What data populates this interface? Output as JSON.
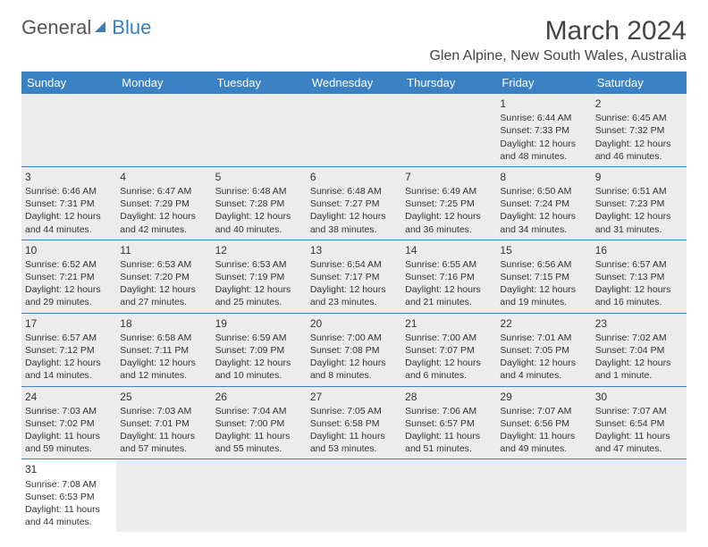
{
  "brand": {
    "part1": "General",
    "part2": "Blue"
  },
  "title": "March 2024",
  "location": "Glen Alpine, New South Wales, Australia",
  "day_headers": [
    "Sunday",
    "Monday",
    "Tuesday",
    "Wednesday",
    "Thursday",
    "Friday",
    "Saturday"
  ],
  "colors": {
    "header_bg": "#3b82c4",
    "header_text": "#ffffff",
    "shaded_row": "#ececec",
    "rule": "#3b82c4",
    "text": "#333333",
    "brand_gray": "#555555",
    "brand_blue": "#3b7fb8"
  },
  "weeks": [
    {
      "shaded": true,
      "days": [
        null,
        null,
        null,
        null,
        null,
        {
          "n": "1",
          "sunrise": "Sunrise: 6:44 AM",
          "sunset": "Sunset: 7:33 PM",
          "daylight": "Daylight: 12 hours and 48 minutes."
        },
        {
          "n": "2",
          "sunrise": "Sunrise: 6:45 AM",
          "sunset": "Sunset: 7:32 PM",
          "daylight": "Daylight: 12 hours and 46 minutes."
        }
      ]
    },
    {
      "shaded": true,
      "days": [
        {
          "n": "3",
          "sunrise": "Sunrise: 6:46 AM",
          "sunset": "Sunset: 7:31 PM",
          "daylight": "Daylight: 12 hours and 44 minutes."
        },
        {
          "n": "4",
          "sunrise": "Sunrise: 6:47 AM",
          "sunset": "Sunset: 7:29 PM",
          "daylight": "Daylight: 12 hours and 42 minutes."
        },
        {
          "n": "5",
          "sunrise": "Sunrise: 6:48 AM",
          "sunset": "Sunset: 7:28 PM",
          "daylight": "Daylight: 12 hours and 40 minutes."
        },
        {
          "n": "6",
          "sunrise": "Sunrise: 6:48 AM",
          "sunset": "Sunset: 7:27 PM",
          "daylight": "Daylight: 12 hours and 38 minutes."
        },
        {
          "n": "7",
          "sunrise": "Sunrise: 6:49 AM",
          "sunset": "Sunset: 7:25 PM",
          "daylight": "Daylight: 12 hours and 36 minutes."
        },
        {
          "n": "8",
          "sunrise": "Sunrise: 6:50 AM",
          "sunset": "Sunset: 7:24 PM",
          "daylight": "Daylight: 12 hours and 34 minutes."
        },
        {
          "n": "9",
          "sunrise": "Sunrise: 6:51 AM",
          "sunset": "Sunset: 7:23 PM",
          "daylight": "Daylight: 12 hours and 31 minutes."
        }
      ]
    },
    {
      "shaded": true,
      "days": [
        {
          "n": "10",
          "sunrise": "Sunrise: 6:52 AM",
          "sunset": "Sunset: 7:21 PM",
          "daylight": "Daylight: 12 hours and 29 minutes."
        },
        {
          "n": "11",
          "sunrise": "Sunrise: 6:53 AM",
          "sunset": "Sunset: 7:20 PM",
          "daylight": "Daylight: 12 hours and 27 minutes."
        },
        {
          "n": "12",
          "sunrise": "Sunrise: 6:53 AM",
          "sunset": "Sunset: 7:19 PM",
          "daylight": "Daylight: 12 hours and 25 minutes."
        },
        {
          "n": "13",
          "sunrise": "Sunrise: 6:54 AM",
          "sunset": "Sunset: 7:17 PM",
          "daylight": "Daylight: 12 hours and 23 minutes."
        },
        {
          "n": "14",
          "sunrise": "Sunrise: 6:55 AM",
          "sunset": "Sunset: 7:16 PM",
          "daylight": "Daylight: 12 hours and 21 minutes."
        },
        {
          "n": "15",
          "sunrise": "Sunrise: 6:56 AM",
          "sunset": "Sunset: 7:15 PM",
          "daylight": "Daylight: 12 hours and 19 minutes."
        },
        {
          "n": "16",
          "sunrise": "Sunrise: 6:57 AM",
          "sunset": "Sunset: 7:13 PM",
          "daylight": "Daylight: 12 hours and 16 minutes."
        }
      ]
    },
    {
      "shaded": true,
      "days": [
        {
          "n": "17",
          "sunrise": "Sunrise: 6:57 AM",
          "sunset": "Sunset: 7:12 PM",
          "daylight": "Daylight: 12 hours and 14 minutes."
        },
        {
          "n": "18",
          "sunrise": "Sunrise: 6:58 AM",
          "sunset": "Sunset: 7:11 PM",
          "daylight": "Daylight: 12 hours and 12 minutes."
        },
        {
          "n": "19",
          "sunrise": "Sunrise: 6:59 AM",
          "sunset": "Sunset: 7:09 PM",
          "daylight": "Daylight: 12 hours and 10 minutes."
        },
        {
          "n": "20",
          "sunrise": "Sunrise: 7:00 AM",
          "sunset": "Sunset: 7:08 PM",
          "daylight": "Daylight: 12 hours and 8 minutes."
        },
        {
          "n": "21",
          "sunrise": "Sunrise: 7:00 AM",
          "sunset": "Sunset: 7:07 PM",
          "daylight": "Daylight: 12 hours and 6 minutes."
        },
        {
          "n": "22",
          "sunrise": "Sunrise: 7:01 AM",
          "sunset": "Sunset: 7:05 PM",
          "daylight": "Daylight: 12 hours and 4 minutes."
        },
        {
          "n": "23",
          "sunrise": "Sunrise: 7:02 AM",
          "sunset": "Sunset: 7:04 PM",
          "daylight": "Daylight: 12 hours and 1 minute."
        }
      ]
    },
    {
      "shaded": true,
      "days": [
        {
          "n": "24",
          "sunrise": "Sunrise: 7:03 AM",
          "sunset": "Sunset: 7:02 PM",
          "daylight": "Daylight: 11 hours and 59 minutes."
        },
        {
          "n": "25",
          "sunrise": "Sunrise: 7:03 AM",
          "sunset": "Sunset: 7:01 PM",
          "daylight": "Daylight: 11 hours and 57 minutes."
        },
        {
          "n": "26",
          "sunrise": "Sunrise: 7:04 AM",
          "sunset": "Sunset: 7:00 PM",
          "daylight": "Daylight: 11 hours and 55 minutes."
        },
        {
          "n": "27",
          "sunrise": "Sunrise: 7:05 AM",
          "sunset": "Sunset: 6:58 PM",
          "daylight": "Daylight: 11 hours and 53 minutes."
        },
        {
          "n": "28",
          "sunrise": "Sunrise: 7:06 AM",
          "sunset": "Sunset: 6:57 PM",
          "daylight": "Daylight: 11 hours and 51 minutes."
        },
        {
          "n": "29",
          "sunrise": "Sunrise: 7:07 AM",
          "sunset": "Sunset: 6:56 PM",
          "daylight": "Daylight: 11 hours and 49 minutes."
        },
        {
          "n": "30",
          "sunrise": "Sunrise: 7:07 AM",
          "sunset": "Sunset: 6:54 PM",
          "daylight": "Daylight: 11 hours and 47 minutes."
        }
      ]
    },
    {
      "shaded": false,
      "days": [
        {
          "n": "31",
          "sunrise": "Sunrise: 7:08 AM",
          "sunset": "Sunset: 6:53 PM",
          "daylight": "Daylight: 11 hours and 44 minutes."
        },
        null,
        null,
        null,
        null,
        null,
        null
      ]
    }
  ]
}
